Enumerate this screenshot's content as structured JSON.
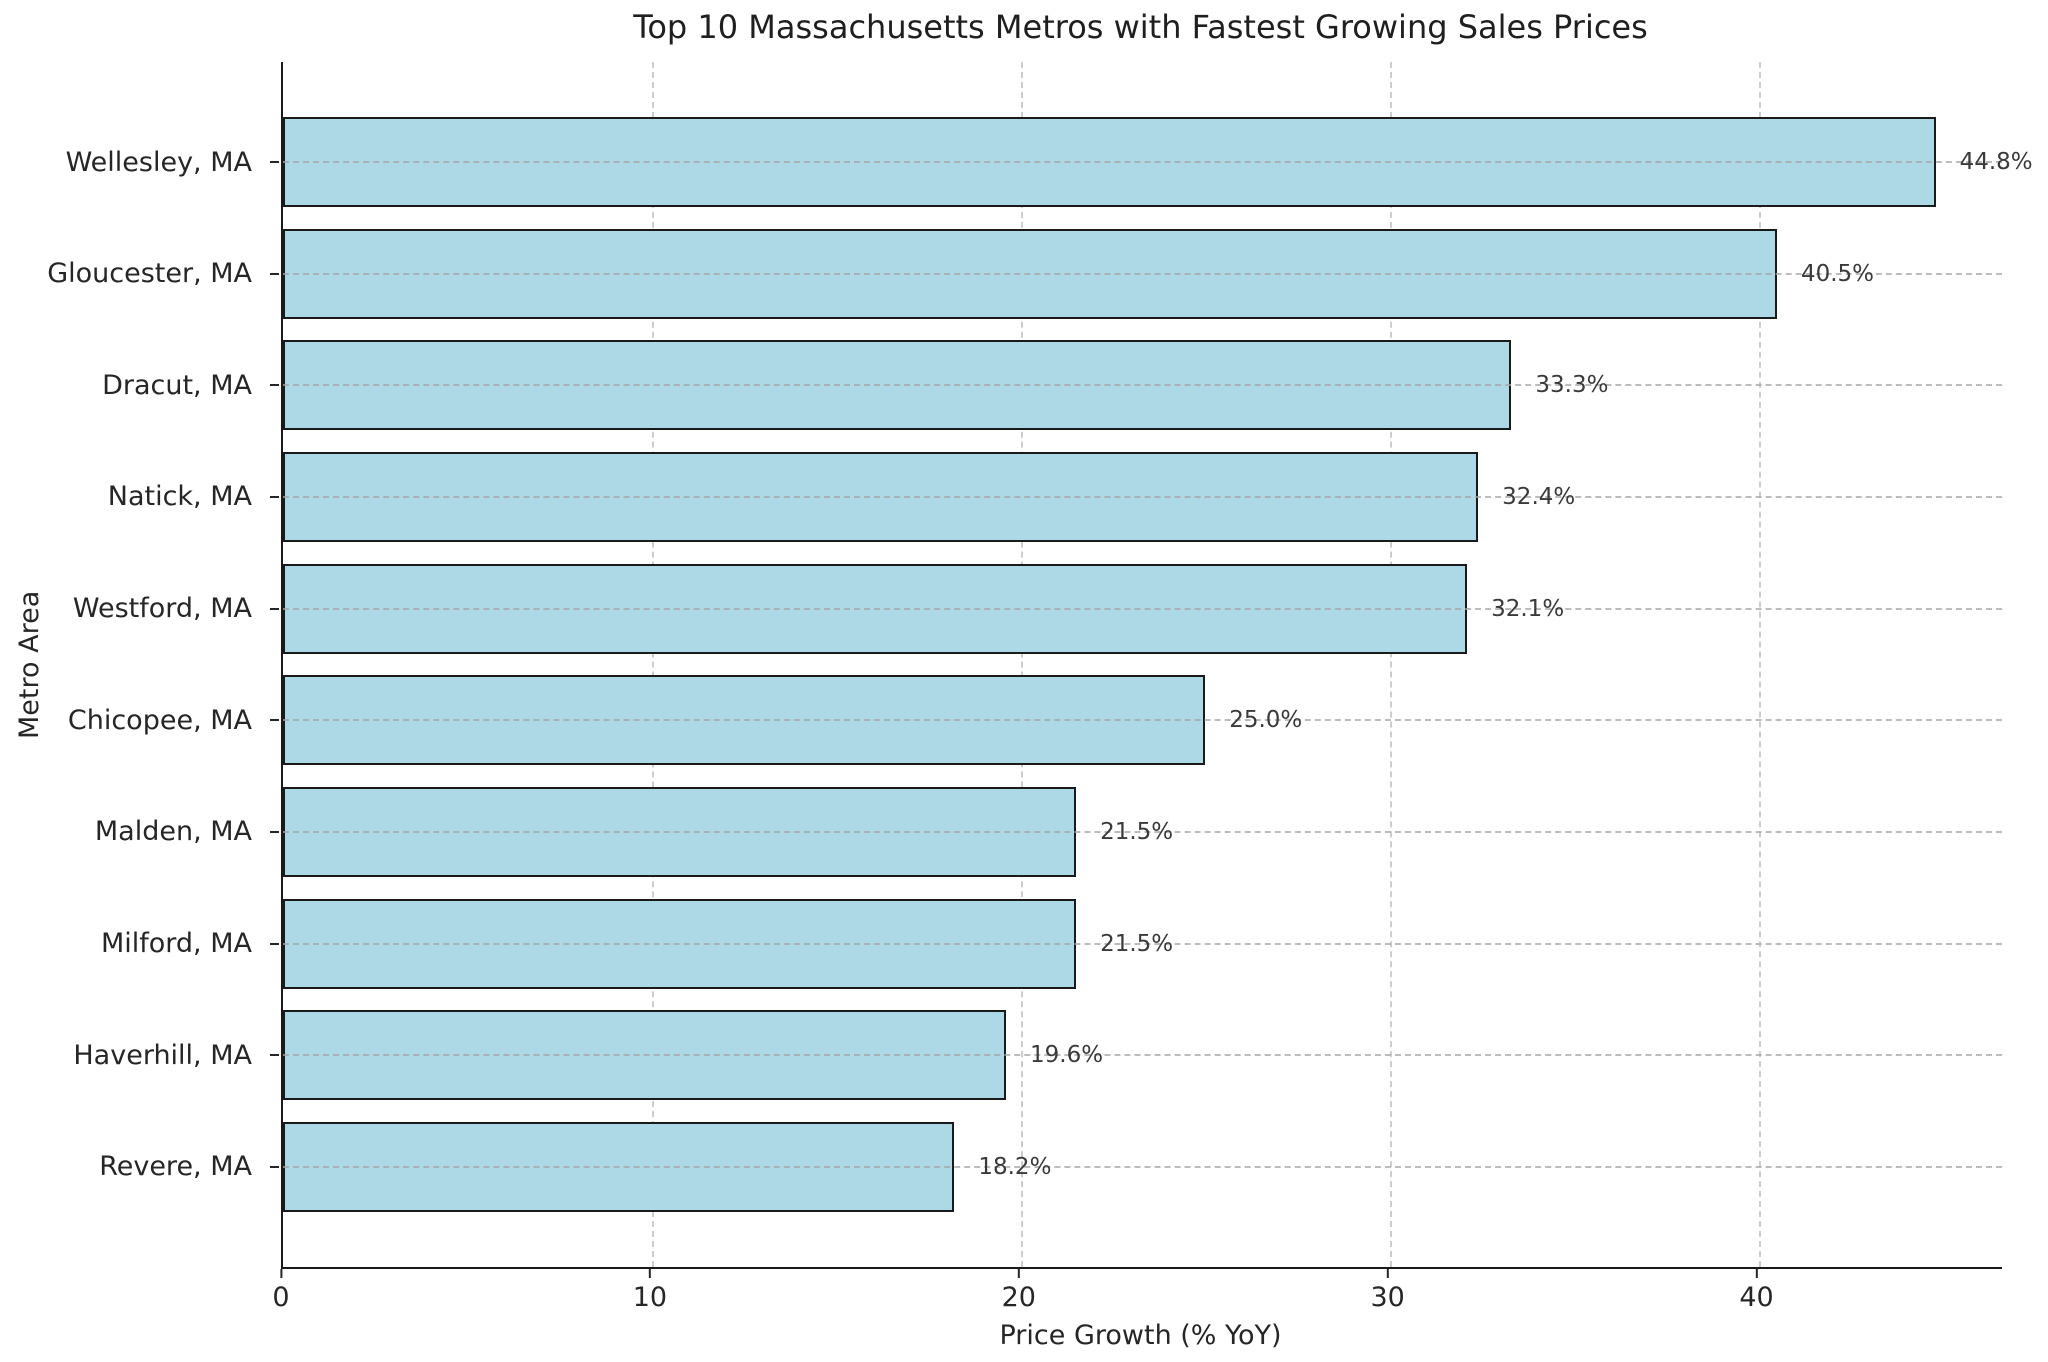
{
  "chart_data": {
    "type": "bar",
    "orientation": "horizontal",
    "title": "Top 10 Massachusetts Metros with Fastest Growing Sales Prices",
    "xlabel": "Price Growth (% YoY)",
    "ylabel": "Metro Area",
    "categories": [
      "Wellesley, MA",
      "Gloucester, MA",
      "Dracut, MA",
      "Natick, MA",
      "Westford, MA",
      "Chicopee, MA",
      "Malden, MA",
      "Milford, MA",
      "Haverhill, MA",
      "Revere, MA"
    ],
    "values": [
      44.8,
      40.5,
      33.3,
      32.4,
      32.1,
      25.0,
      21.5,
      21.5,
      19.6,
      18.2
    ],
    "value_labels": [
      "44.8%",
      "40.5%",
      "33.3%",
      "32.4%",
      "32.1%",
      "25.0%",
      "21.5%",
      "21.5%",
      "19.6%",
      "18.2%"
    ],
    "xticks": [
      0,
      10,
      20,
      30,
      40
    ],
    "xlim": [
      0,
      46.6
    ],
    "grid": "dashed, vertical lines behind bars, horizontal lines over bars",
    "legend_position": "none",
    "colors": {
      "bar_fill": "#ADD8E6",
      "bar_edge": "#1a1a1a",
      "grid": "#cdcdcd",
      "spine": "#1a1a1a",
      "text": "#262626",
      "background": "#ffffff"
    }
  }
}
